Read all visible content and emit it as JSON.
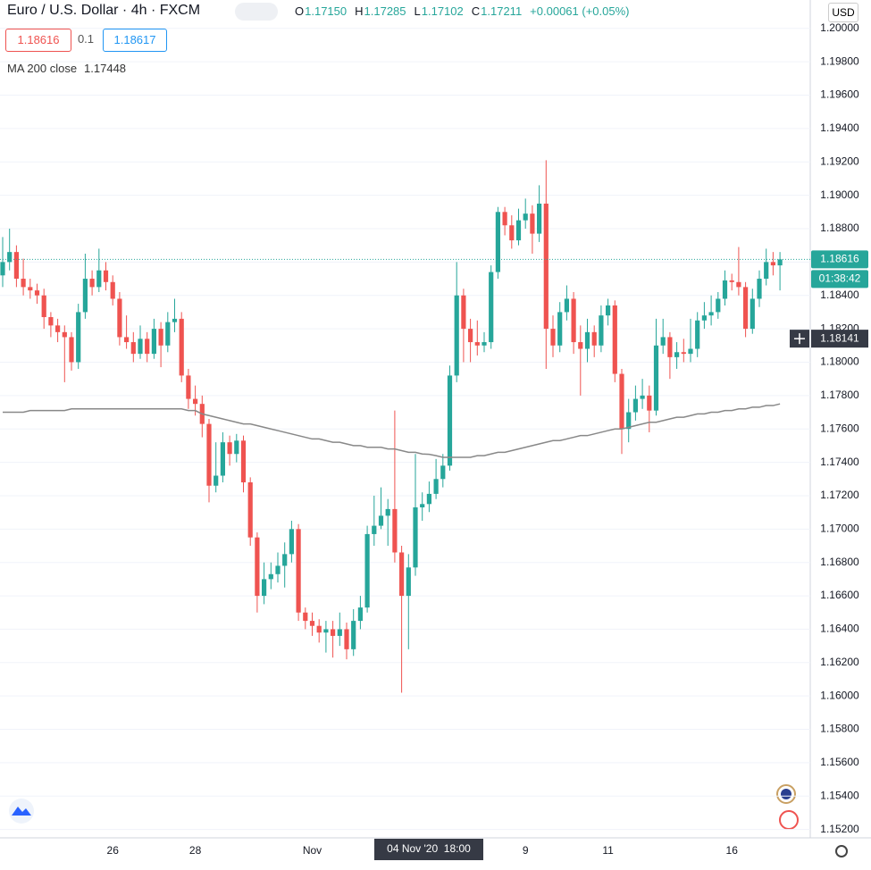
{
  "chart_data": {
    "type": "candlestick",
    "title": "Euro / U.S. Dollar · 4h · FXCM",
    "status": [
      "O",
      "1.17150",
      "H",
      "1.17285",
      "L",
      "1.17102",
      "C",
      "1.17211",
      "+0.00061 (+0.05%)"
    ],
    "sell_price": "1.18616",
    "spread": "0.1",
    "buy_price": "1.18617",
    "currency": "USD",
    "up_color": "#26a69a",
    "down_color": "#ef5350",
    "categories": [
      null,
      null,
      null,
      null,
      null,
      null,
      null,
      null,
      null,
      null,
      null,
      null,
      null,
      null,
      null,
      null,
      "26",
      null,
      null,
      null,
      null,
      null,
      null,
      null,
      null,
      null,
      null,
      null,
      "28",
      null,
      null,
      null,
      null,
      null,
      null,
      null,
      null,
      null,
      null,
      null,
      null,
      null,
      null,
      null,
      null,
      "Nov",
      null,
      null,
      null,
      null,
      null,
      null,
      null,
      null,
      null,
      null,
      null,
      null,
      null,
      null,
      null,
      null,
      null,
      null,
      null,
      null,
      null,
      null,
      null,
      null,
      null,
      null,
      null,
      null,
      null,
      null,
      "9",
      null,
      null,
      null,
      null,
      null,
      null,
      null,
      null,
      null,
      null,
      null,
      "11",
      null,
      null,
      null,
      null,
      null,
      null,
      null,
      null,
      null,
      null,
      null,
      null,
      null,
      null,
      null,
      null,
      null,
      "16",
      null,
      null,
      null,
      null,
      null,
      null,
      null
    ],
    "open": [
      1.1852,
      1.186,
      1.1866,
      1.185,
      1.1845,
      1.1843,
      1.184,
      1.1827,
      1.1822,
      1.1818,
      1.1815,
      1.18,
      1.183,
      1.185,
      1.1845,
      1.1855,
      1.1848,
      1.1838,
      1.1815,
      1.1812,
      1.1805,
      1.1814,
      1.1805,
      1.182,
      1.181,
      1.1824,
      1.1826,
      1.1792,
      1.1778,
      1.1775,
      1.1763,
      1.1726,
      1.1732,
      1.1752,
      1.1745,
      1.1753,
      1.1728,
      1.1695,
      1.166,
      1.167,
      1.1673,
      1.1678,
      1.1685,
      1.17,
      1.165,
      1.1645,
      1.1642,
      1.1638,
      1.164,
      1.1636,
      1.164,
      1.1628,
      1.1645,
      1.1653,
      1.1697,
      1.1702,
      1.1708,
      1.1712,
      1.1686,
      1.166,
      1.1677,
      1.1713,
      1.1715,
      1.17211,
      1.173,
      1.1738,
      1.1792,
      1.184,
      1.182,
      1.1812,
      1.181,
      1.1812,
      1.1854,
      1.189,
      1.1882,
      1.1873,
      1.1885,
      1.1889,
      1.1877,
      1.1895,
      1.182,
      1.181,
      1.183,
      1.1838,
      1.1812,
      1.1808,
      1.1818,
      1.181,
      1.1828,
      1.1834,
      1.1793,
      1.176,
      1.177,
      1.1778,
      1.178,
      1.1771,
      1.181,
      1.1815,
      1.1803,
      1.1806,
      1.1805,
      1.1808,
      1.1825,
      1.1828,
      1.183,
      1.1838,
      1.1849,
      1.1848,
      1.1845,
      1.182,
      1.1838,
      1.185,
      1.186,
      1.1858
    ],
    "high": [
      1.1875,
      1.188,
      1.187,
      1.1862,
      1.185,
      1.1847,
      1.1844,
      1.183,
      1.1826,
      1.1822,
      1.1818,
      1.1835,
      1.1865,
      1.1855,
      1.1868,
      1.186,
      1.1852,
      1.1842,
      1.1828,
      1.1818,
      1.1822,
      1.1818,
      1.1826,
      1.1824,
      1.183,
      1.1838,
      1.183,
      1.1796,
      1.1786,
      1.178,
      1.1766,
      1.1752,
      1.1758,
      1.1756,
      1.1757,
      1.1756,
      1.1731,
      1.1698,
      1.168,
      1.168,
      1.1686,
      1.1692,
      1.1705,
      1.1703,
      1.1653,
      1.165,
      1.1646,
      1.1645,
      1.1645,
      1.165,
      1.1644,
      1.1652,
      1.166,
      1.1702,
      1.172,
      1.1725,
      1.1718,
      1.1771,
      1.169,
      1.1685,
      1.1745,
      1.1722,
      1.17285,
      1.1742,
      1.1745,
      1.1798,
      1.186,
      1.1844,
      1.1826,
      1.1825,
      1.1818,
      1.1858,
      1.1893,
      1.1893,
      1.1888,
      1.1892,
      1.1898,
      1.1894,
      1.1906,
      1.1921,
      1.1828,
      1.1836,
      1.1846,
      1.1842,
      1.1822,
      1.1826,
      1.1822,
      1.1834,
      1.1838,
      1.1837,
      1.1796,
      1.1778,
      1.1786,
      1.179,
      1.1786,
      1.1826,
      1.1826,
      1.1818,
      1.1812,
      1.1814,
      1.1826,
      1.183,
      1.1836,
      1.184,
      1.1842,
      1.1855,
      1.1853,
      1.1869,
      1.1848,
      1.1844,
      1.1855,
      1.1868,
      1.1866,
      1.1866
    ],
    "low": [
      1.1845,
      1.1855,
      1.1845,
      1.184,
      1.1838,
      1.1835,
      1.182,
      1.1815,
      1.1812,
      1.1788,
      1.1795,
      1.1796,
      1.1826,
      1.184,
      1.1842,
      1.1843,
      1.1834,
      1.181,
      1.1808,
      1.18,
      1.1802,
      1.18,
      1.1802,
      1.1797,
      1.1806,
      1.1818,
      1.1788,
      1.1772,
      1.1768,
      1.1755,
      1.1716,
      1.1722,
      1.1728,
      1.1738,
      1.174,
      1.1722,
      1.169,
      1.165,
      1.1655,
      1.1664,
      1.1668,
      1.1665,
      1.168,
      1.1645,
      1.164,
      1.1636,
      1.1632,
      1.1626,
      1.1623,
      1.163,
      1.1622,
      1.1624,
      1.164,
      1.165,
      1.169,
      1.17,
      1.169,
      1.168,
      1.1602,
      1.1628,
      1.1672,
      1.1705,
      1.17102,
      1.1718,
      1.1725,
      1.1735,
      1.1788,
      1.18,
      1.18,
      1.1804,
      1.1806,
      1.1808,
      1.185,
      1.1876,
      1.1868,
      1.187,
      1.188,
      1.1865,
      1.1872,
      1.1796,
      1.1803,
      1.1806,
      1.1825,
      1.1805,
      1.178,
      1.18,
      1.1803,
      1.1806,
      1.1822,
      1.1788,
      1.1745,
      1.1752,
      1.1765,
      1.1772,
      1.1758,
      1.1768,
      1.1805,
      1.179,
      1.1796,
      1.18,
      1.18,
      1.1803,
      1.182,
      1.1822,
      1.1826,
      1.1834,
      1.1843,
      1.184,
      1.1815,
      1.1817,
      1.1833,
      1.1846,
      1.1852,
      1.1843
    ],
    "close": [
      1.186,
      1.1866,
      1.185,
      1.1845,
      1.1843,
      1.184,
      1.1827,
      1.1822,
      1.1818,
      1.1815,
      1.18,
      1.183,
      1.185,
      1.1845,
      1.1855,
      1.1848,
      1.1838,
      1.1815,
      1.1812,
      1.1805,
      1.1814,
      1.1805,
      1.182,
      1.181,
      1.1824,
      1.1826,
      1.1792,
      1.1778,
      1.1775,
      1.1763,
      1.1726,
      1.1732,
      1.1752,
      1.1745,
      1.1753,
      1.1728,
      1.1695,
      1.166,
      1.167,
      1.1673,
      1.1678,
      1.1685,
      1.17,
      1.165,
      1.1645,
      1.1642,
      1.1638,
      1.164,
      1.1636,
      1.164,
      1.1628,
      1.1645,
      1.1653,
      1.1697,
      1.1702,
      1.1708,
      1.1712,
      1.1686,
      1.166,
      1.1677,
      1.1713,
      1.1715,
      1.17211,
      1.173,
      1.1738,
      1.1792,
      1.184,
      1.182,
      1.1812,
      1.181,
      1.1812,
      1.1854,
      1.189,
      1.1882,
      1.1873,
      1.1885,
      1.1889,
      1.1877,
      1.1895,
      1.182,
      1.181,
      1.183,
      1.1838,
      1.1812,
      1.1808,
      1.1818,
      1.181,
      1.1828,
      1.1834,
      1.1793,
      1.176,
      1.177,
      1.1778,
      1.178,
      1.1771,
      1.181,
      1.1815,
      1.1803,
      1.1806,
      1.1805,
      1.1808,
      1.1825,
      1.1828,
      1.183,
      1.1838,
      1.1849,
      1.1848,
      1.1845,
      1.182,
      1.1838,
      1.185,
      1.186,
      1.1858,
      1.18616
    ],
    "ma": {
      "name": "MA 200 close",
      "color": "#888888",
      "values": [
        1.177,
        1.177,
        1.177,
        1.177,
        1.1771,
        1.1771,
        1.1771,
        1.1771,
        1.1771,
        1.1771,
        1.1772,
        1.1772,
        1.1772,
        1.1772,
        1.1772,
        1.1772,
        1.1772,
        1.1772,
        1.1772,
        1.1772,
        1.1772,
        1.1772,
        1.1772,
        1.1772,
        1.1772,
        1.1772,
        1.1772,
        1.1771,
        1.1771,
        1.1769,
        1.1768,
        1.1767,
        1.1766,
        1.1765,
        1.1764,
        1.1763,
        1.1763,
        1.1762,
        1.1761,
        1.176,
        1.1759,
        1.1758,
        1.1757,
        1.1756,
        1.1755,
        1.1754,
        1.1754,
        1.1753,
        1.1752,
        1.1752,
        1.1751,
        1.175,
        1.175,
        1.1749,
        1.1749,
        1.1749,
        1.1748,
        1.1748,
        1.1747,
        1.1746,
        1.1746,
        1.1745,
        1.17448,
        1.1744,
        1.1743,
        1.1743,
        1.1743,
        1.1743,
        1.1743,
        1.1744,
        1.1744,
        1.1745,
        1.1746,
        1.1746,
        1.1747,
        1.1748,
        1.1749,
        1.175,
        1.1751,
        1.1752,
        1.1753,
        1.1753,
        1.1754,
        1.1755,
        1.1756,
        1.1756,
        1.1757,
        1.1758,
        1.1759,
        1.176,
        1.176,
        1.1761,
        1.1762,
        1.1763,
        1.1764,
        1.1764,
        1.1765,
        1.1766,
        1.1767,
        1.1767,
        1.1768,
        1.1769,
        1.1769,
        1.177,
        1.177,
        1.1771,
        1.1771,
        1.1772,
        1.1772,
        1.1773,
        1.1773,
        1.1774,
        1.1774,
        1.1775
      ]
    },
    "last_price": 1.18616,
    "countdown": "01:38:42",
    "crosshair_price": 1.18141,
    "crosshair_time": "04 Nov '20  18:00",
    "ylim": [
      1.1515,
      1.2017
    ],
    "yticks": [
      {
        "value": 1.2,
        "label": "1.20000"
      },
      {
        "value": 1.198,
        "label": "1.19800"
      },
      {
        "value": 1.196,
        "label": "1.19600"
      },
      {
        "value": 1.194,
        "label": "1.19400"
      },
      {
        "value": 1.192,
        "label": "1.19200"
      },
      {
        "value": 1.19,
        "label": "1.19000"
      },
      {
        "value": 1.188,
        "label": "1.18800"
      },
      {
        "value": 1.186,
        "label": "1.18600"
      },
      {
        "value": 1.184,
        "label": "1.18400"
      },
      {
        "value": 1.182,
        "label": "1.18200"
      },
      {
        "value": 1.18,
        "label": "1.18000"
      },
      {
        "value": 1.178,
        "label": "1.17800"
      },
      {
        "value": 1.176,
        "label": "1.17600"
      },
      {
        "value": 1.174,
        "label": "1.17400"
      },
      {
        "value": 1.172,
        "label": "1.17200"
      },
      {
        "value": 1.17,
        "label": "1.17000"
      },
      {
        "value": 1.168,
        "label": "1.16800"
      },
      {
        "value": 1.166,
        "label": "1.16600"
      },
      {
        "value": 1.164,
        "label": "1.16400"
      },
      {
        "value": 1.162,
        "label": "1.16200"
      },
      {
        "value": 1.16,
        "label": "1.16000"
      },
      {
        "value": 1.158,
        "label": "1.15800"
      },
      {
        "value": 1.156,
        "label": "1.15600"
      },
      {
        "value": 1.154,
        "label": "1.15400"
      },
      {
        "value": 1.152,
        "label": "1.15200"
      }
    ],
    "grid": true
  }
}
